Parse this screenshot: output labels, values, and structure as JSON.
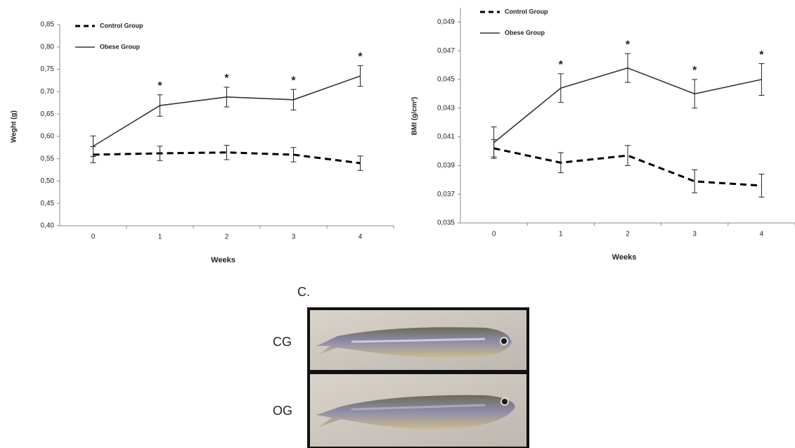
{
  "chart_data": [
    {
      "type": "line",
      "x_label": "Weeks",
      "y_label": "Weght (g)",
      "categories": [
        "0",
        "1",
        "2",
        "3",
        "4"
      ],
      "ylim": [
        0.4,
        0.85
      ],
      "yticks": [
        {
          "value": 0.4,
          "label": "0,40"
        },
        {
          "value": 0.45,
          "label": "0,45"
        },
        {
          "value": 0.5,
          "label": "0,50"
        },
        {
          "value": 0.55,
          "label": "0,55"
        },
        {
          "value": 0.6,
          "label": "0,60"
        },
        {
          "value": 0.65,
          "label": "0,65"
        },
        {
          "value": 0.7,
          "label": "0,70"
        },
        {
          "value": 0.75,
          "label": "0,75"
        },
        {
          "value": 0.8,
          "label": "0,80"
        },
        {
          "value": 0.85,
          "label": "0,85"
        }
      ],
      "legend": "top-left",
      "significance": [
        null,
        "*",
        "*",
        "*",
        "*"
      ],
      "series": [
        {
          "name": "Control Group",
          "color": "#000000",
          "line_style": "dashed",
          "values": [
            0.559,
            0.562,
            0.564,
            0.559,
            0.54
          ],
          "errors": [
            0.018,
            0.016,
            0.016,
            0.016,
            0.016
          ]
        },
        {
          "name": "Obese Group",
          "color": "#333333",
          "line_style": "solid",
          "values": [
            0.578,
            0.669,
            0.688,
            0.682,
            0.735
          ],
          "errors": [
            0.023,
            0.024,
            0.022,
            0.023,
            0.023
          ]
        }
      ]
    },
    {
      "type": "line",
      "x_label": "Weeks",
      "y_label": "BMI (g/cm²)",
      "categories": [
        "0",
        "1",
        "2",
        "3",
        "4"
      ],
      "ylim": [
        0.035,
        0.05
      ],
      "yticks": [
        {
          "value": 0.035,
          "label": "0,035"
        },
        {
          "value": 0.037,
          "label": "0,037"
        },
        {
          "value": 0.039,
          "label": "0,039"
        },
        {
          "value": 0.041,
          "label": "0,041"
        },
        {
          "value": 0.043,
          "label": "0,043"
        },
        {
          "value": 0.045,
          "label": "0,045"
        },
        {
          "value": 0.047,
          "label": "0,047"
        },
        {
          "value": 0.049,
          "label": "0,049"
        }
      ],
      "legend": "top-left",
      "significance": [
        null,
        "*",
        "*",
        "*",
        "*"
      ],
      "series": [
        {
          "name": "Control Group",
          "color": "#000000",
          "line_style": "dashed",
          "values": [
            0.0402,
            0.0392,
            0.0397,
            0.0379,
            0.0376
          ],
          "errors": [
            0.0006,
            0.0007,
            0.0007,
            0.0008,
            0.0008
          ]
        },
        {
          "name": "Obese Group",
          "color": "#333333",
          "line_style": "solid",
          "values": [
            0.0406,
            0.0444,
            0.0458,
            0.044,
            0.045
          ],
          "errors": [
            0.0011,
            0.001,
            0.001,
            0.001,
            0.0011
          ]
        }
      ]
    }
  ],
  "panel_c": {
    "label": "C.",
    "rows": [
      "CG",
      "OG"
    ]
  }
}
